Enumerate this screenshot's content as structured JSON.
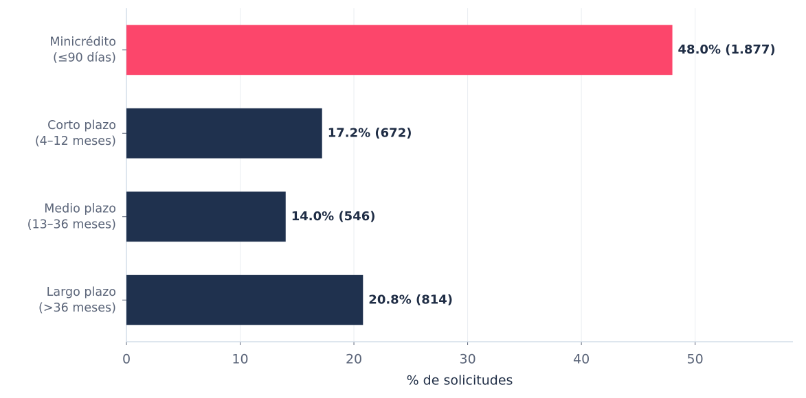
{
  "chart_data": {
    "type": "barh",
    "categories": [
      [
        "Minicrédito",
        "(≤90 días)"
      ],
      [
        "Corto plazo",
        "(4–12 meses)"
      ],
      [
        "Medio plazo",
        "(13–36 meses)"
      ],
      [
        "Largo plazo",
        "(>36 meses)"
      ]
    ],
    "values": [
      48.0,
      17.2,
      14.0,
      20.8
    ],
    "value_labels": [
      "48.0%  (1.877)",
      "17.2%  (672)",
      "14.0%  (546)",
      "20.8%  (814)"
    ],
    "colors": [
      "#fc466b",
      "#1f314e",
      "#1f314e",
      "#1f314e"
    ],
    "xlabel": "% de solicitudes",
    "xlim": [
      0,
      58.6
    ],
    "xticks": [
      0,
      10,
      20,
      30,
      40,
      50
    ],
    "grid": true
  }
}
